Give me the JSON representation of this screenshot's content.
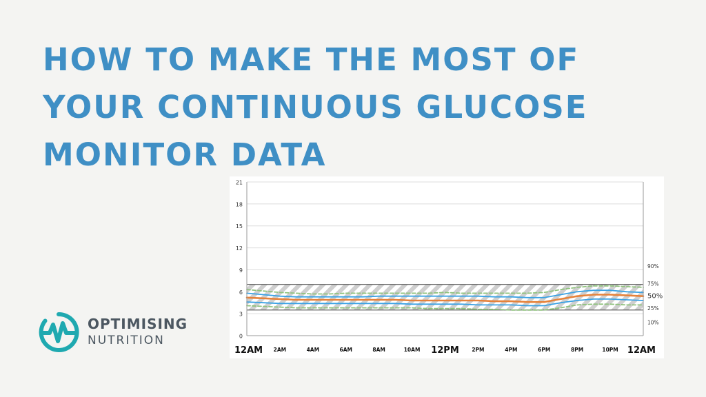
{
  "title_lines": [
    "HOW TO MAKE THE MOST OF",
    "YOUR CONTINUOUS GLUCOSE",
    "MONITOR  DATA"
  ],
  "logo": {
    "line1": "OPTIMISING",
    "line2": "NUTRITION",
    "icon": "pulse-loop-icon",
    "color": "#1fa9b0"
  },
  "chart_data": {
    "type": "line",
    "title": "",
    "xlabel": "",
    "ylabel": "",
    "ylim": [
      0,
      21
    ],
    "yticks": [
      "0",
      "3",
      "6",
      "9",
      "12",
      "15",
      "18",
      "21"
    ],
    "x_ticks": [
      "12AM",
      "2AM",
      "4AM",
      "6AM",
      "8AM",
      "10AM",
      "12PM",
      "2PM",
      "4PM",
      "6PM",
      "8PM",
      "10PM",
      "12AM"
    ],
    "x_tick_hours": [
      0,
      2,
      4,
      6,
      8,
      10,
      12,
      14,
      16,
      18,
      20,
      22,
      24
    ],
    "x_major_ticks": [
      "12AM",
      "12PM"
    ],
    "grid": true,
    "target_range": [
      3.5,
      7
    ],
    "x_hours": [
      0,
      1,
      2,
      3,
      4,
      5,
      6,
      7,
      8,
      9,
      10,
      11,
      12,
      13,
      14,
      15,
      16,
      17,
      18,
      19,
      20,
      21,
      22,
      23,
      24
    ],
    "series": [
      {
        "name": "90%",
        "color": "#8fc27d",
        "style": "dashed",
        "values": [
          6.3,
          6.1,
          5.9,
          5.8,
          5.7,
          5.7,
          5.8,
          5.8,
          5.8,
          5.8,
          5.8,
          5.8,
          5.9,
          5.8,
          5.8,
          5.8,
          5.8,
          5.8,
          5.9,
          6.3,
          6.6,
          6.8,
          6.8,
          6.7,
          6.6
        ]
      },
      {
        "name": "75%",
        "color": "#3aa2e4",
        "style": "solid",
        "values": [
          5.8,
          5.6,
          5.4,
          5.3,
          5.3,
          5.3,
          5.3,
          5.3,
          5.4,
          5.4,
          5.4,
          5.4,
          5.4,
          5.4,
          5.4,
          5.3,
          5.3,
          5.2,
          5.2,
          5.6,
          6.0,
          6.2,
          6.2,
          6.0,
          5.9
        ]
      },
      {
        "name": "50%",
        "color": "#e6823a",
        "style": "solid",
        "values": [
          5.2,
          5.1,
          5.0,
          4.9,
          4.9,
          4.9,
          4.9,
          4.9,
          4.9,
          4.9,
          4.8,
          4.8,
          4.8,
          4.8,
          4.8,
          4.7,
          4.7,
          4.6,
          4.6,
          5.0,
          5.4,
          5.6,
          5.6,
          5.5,
          5.4
        ]
      },
      {
        "name": "25%",
        "color": "#3aa2e4",
        "style": "solid",
        "values": [
          4.6,
          4.5,
          4.4,
          4.4,
          4.4,
          4.4,
          4.4,
          4.4,
          4.4,
          4.4,
          4.3,
          4.3,
          4.3,
          4.3,
          4.2,
          4.2,
          4.2,
          4.1,
          4.1,
          4.5,
          4.8,
          5.0,
          5.0,
          4.9,
          4.8
        ]
      },
      {
        "name": "10%",
        "color": "#8fc27d",
        "style": "dashed",
        "values": [
          4.1,
          4.0,
          3.9,
          3.8,
          3.8,
          3.8,
          3.8,
          3.8,
          3.8,
          3.8,
          3.8,
          3.7,
          3.7,
          3.7,
          3.6,
          3.6,
          3.5,
          3.5,
          3.5,
          3.8,
          4.2,
          4.3,
          4.3,
          4.2,
          4.2
        ]
      }
    ],
    "legend_position": "right",
    "colors": {
      "target_band_stripe": "#cfcfcf",
      "grid": "#dcdcdc",
      "axis": "#9a9a9a"
    }
  }
}
